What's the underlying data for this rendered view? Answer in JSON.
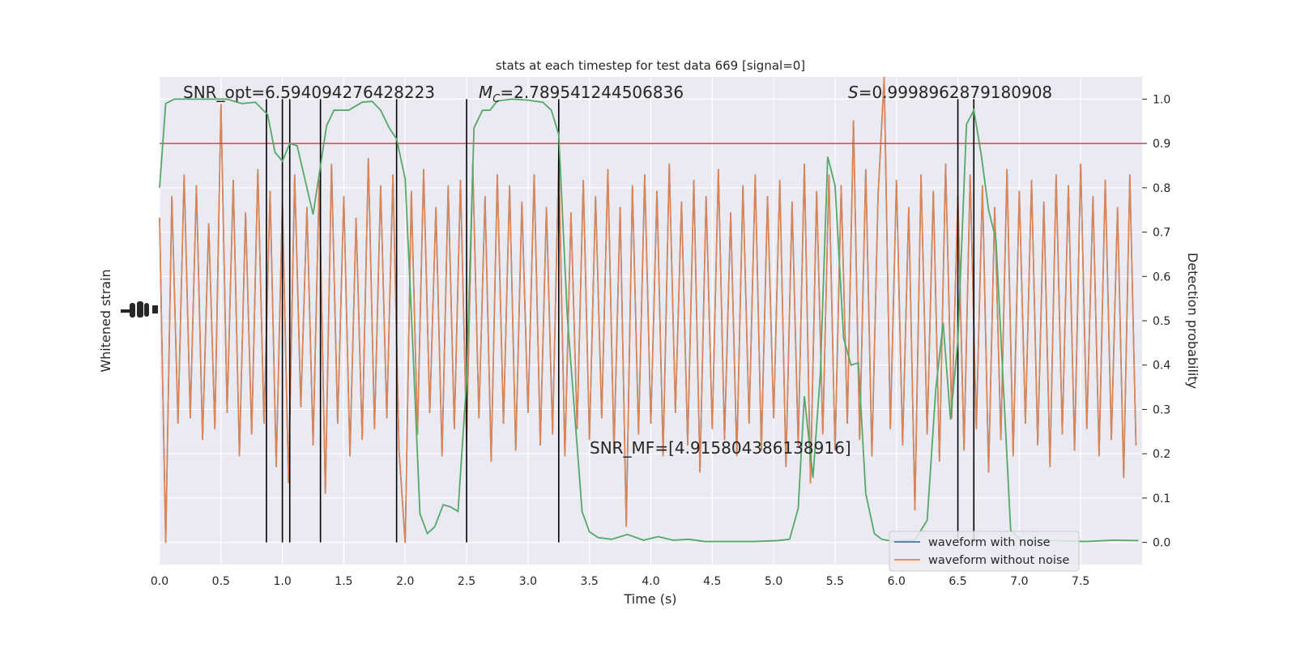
{
  "chart_data": {
    "type": "line",
    "title": "stats at each timestep for test data 669 [signal=0]",
    "xlabel": "Time (s)",
    "ylabel": "Whitened strain",
    "y2label": "Detection probability",
    "xlim": [
      0,
      8
    ],
    "ylim": [
      -4.6,
      4.4
    ],
    "y2lim": [
      -0.05,
      1.05
    ],
    "grid": true,
    "legend": "lower right",
    "xticks": [
      {
        "value": 0,
        "label": "0.0"
      },
      0.5,
      {
        "value": 1,
        "label": "1.0"
      },
      1.5,
      {
        "value": 2,
        "label": "2.0"
      },
      2.5,
      {
        "value": 3,
        "label": "3.0"
      },
      3.5,
      {
        "value": 4,
        "label": "4.0"
      },
      4.5,
      {
        "value": 5,
        "label": "5.0"
      },
      5.5,
      {
        "value": 6,
        "label": "6.0"
      },
      6.5,
      {
        "value": 7,
        "label": "7.0"
      },
      7.5
    ],
    "y2ticks": [
      {
        "value": 0,
        "label": "0.0"
      },
      0.1,
      0.2,
      0.3,
      0.4,
      0.5,
      0.6,
      0.7,
      0.8,
      0.9,
      {
        "value": 1,
        "label": "1.0"
      }
    ],
    "x": [
      0,
      0.05,
      0.1,
      0.15,
      0.2,
      0.25,
      0.3,
      0.35,
      0.4,
      0.45,
      0.5,
      0.55,
      0.6,
      0.65,
      0.7,
      0.75,
      0.8,
      0.85,
      0.9,
      0.95,
      1,
      1.05,
      1.1,
      1.15,
      1.2,
      1.25,
      1.3,
      1.35,
      1.4,
      1.45,
      1.5,
      1.55,
      1.6,
      1.65,
      1.7,
      1.75,
      1.8,
      1.85,
      1.9,
      1.95,
      2,
      2.05,
      2.1,
      2.15,
      2.2,
      2.25,
      2.3,
      2.35,
      2.4,
      2.45,
      2.5,
      2.55,
      2.6,
      2.65,
      2.7,
      2.75,
      2.8,
      2.85,
      2.9,
      2.95,
      3,
      3.05,
      3.1,
      3.15,
      3.2,
      3.25,
      3.3,
      3.35,
      3.4,
      3.45,
      3.5,
      3.55,
      3.6,
      3.65,
      3.7,
      3.75,
      3.8,
      3.85,
      3.9,
      3.95,
      4,
      4.05,
      4.1,
      4.15,
      4.2,
      4.25,
      4.3,
      4.35,
      4.4,
      4.45,
      4.5,
      4.55,
      4.6,
      4.65,
      4.7,
      4.75,
      4.8,
      4.85,
      4.9,
      4.95,
      5,
      5.05,
      5.1,
      5.15,
      5.2,
      5.25,
      5.3,
      5.35,
      5.4,
      5.45,
      5.5,
      5.55,
      5.6,
      5.65,
      5.7,
      5.75,
      5.8,
      5.85,
      5.9,
      5.95,
      6,
      6.05,
      6.1,
      6.15,
      6.2,
      6.25,
      6.3,
      6.35,
      6.4,
      6.45,
      6.5,
      6.55,
      6.6,
      6.65,
      6.7,
      6.75,
      6.8,
      6.85,
      6.9,
      6.95,
      7,
      7.05,
      7.1,
      7.15,
      7.2,
      7.25,
      7.3,
      7.35,
      7.4,
      7.45,
      7.5,
      7.55,
      7.6,
      7.65,
      7.7,
      7.75,
      7.8,
      7.85,
      7.9,
      7.95
    ],
    "series": [
      {
        "name": "waveform with noise",
        "color": "#4c72b0",
        "values": [
          1.8,
          -4.2,
          2.2,
          -2.0,
          2.6,
          -1.9,
          2.4,
          -2.3,
          1.7,
          -2.1,
          3.9,
          -1.8,
          2.5,
          -2.6,
          1.9,
          -2.2,
          2.7,
          -2.0,
          2.3,
          -2.8,
          2.1,
          -3.1,
          2.6,
          -1.7,
          2.0,
          -2.4,
          2.5,
          -3.3,
          2.8,
          -2.0,
          2.2,
          -2.6,
          1.8,
          -2.3,
          2.9,
          -2.1,
          2.4,
          -1.9,
          2.6,
          -2.5,
          -4.2,
          2.3,
          -2.2,
          2.7,
          -1.8,
          2.0,
          -2.6,
          2.4,
          -2.1,
          2.5,
          -2.3,
          2.8,
          -1.9,
          2.2,
          -2.7,
          2.6,
          -2.0,
          2.4,
          -2.5,
          2.1,
          -1.8,
          2.6,
          -2.4,
          2.0,
          -2.2,
          2.9,
          -2.6,
          1.9,
          -2.1,
          2.5,
          -2.3,
          2.2,
          -1.9,
          2.7,
          -2.5,
          2.0,
          -3.9,
          2.4,
          -2.2,
          2.6,
          -2.0,
          2.3,
          -2.6,
          2.8,
          -1.8,
          2.1,
          -2.4,
          2.5,
          -2.9,
          2.2,
          -2.1,
          2.7,
          -2.3,
          1.9,
          -2.6,
          2.4,
          -2.0,
          2.6,
          -2.5,
          2.2,
          -1.9,
          2.5,
          -2.8,
          2.1,
          -2.4,
          2.8,
          -3.1,
          2.3,
          -2.2,
          2.6,
          -2.5,
          2.4,
          -2.0,
          3.6,
          -2.3,
          2.7,
          -2.6,
          2.2,
          4.4,
          -2.1,
          2.5,
          -2.4,
          2.0,
          -3.6,
          2.6,
          -2.2,
          2.3,
          -2.7,
          2.8,
          -1.9,
          2.2,
          -2.5,
          2.6,
          -2.1,
          2.4,
          -2.9,
          2.0,
          -2.3,
          2.7,
          -2.6,
          2.3,
          -2.0,
          2.5,
          -2.4,
          2.1,
          -2.8,
          2.6,
          -2.2,
          2.4,
          -2.5,
          2.8,
          -2.1,
          2.2,
          -2.6,
          2.5,
          -2.3,
          2.0,
          -3.0,
          2.6,
          -2.4
        ]
      },
      {
        "name": "waveform without noise",
        "color": "#dd8452",
        "values": [
          1.8,
          -4.2,
          2.2,
          -2.0,
          2.6,
          -1.9,
          2.4,
          -2.3,
          1.7,
          -2.1,
          3.9,
          -1.8,
          2.5,
          -2.6,
          1.9,
          -2.2,
          2.7,
          -2.0,
          2.3,
          -2.8,
          2.1,
          -3.1,
          2.6,
          -1.7,
          2.0,
          -2.4,
          2.5,
          -3.3,
          2.8,
          -2.0,
          2.2,
          -2.6,
          1.8,
          -2.3,
          2.9,
          -2.1,
          2.4,
          -1.9,
          2.6,
          -2.5,
          -4.2,
          2.3,
          -2.2,
          2.7,
          -1.8,
          2.0,
          -2.6,
          2.4,
          -2.1,
          2.5,
          -2.3,
          2.8,
          -1.9,
          2.2,
          -2.7,
          2.6,
          -2.0,
          2.4,
          -2.5,
          2.1,
          -1.8,
          2.6,
          -2.4,
          2.0,
          -2.2,
          2.9,
          -2.6,
          1.9,
          -2.1,
          2.5,
          -2.3,
          2.2,
          -1.9,
          2.7,
          -2.5,
          2.0,
          -3.9,
          2.4,
          -2.2,
          2.6,
          -2.0,
          2.3,
          -2.6,
          2.8,
          -1.8,
          2.1,
          -2.4,
          2.5,
          -2.9,
          2.2,
          -2.1,
          2.7,
          -2.3,
          1.9,
          -2.6,
          2.4,
          -2.0,
          2.6,
          -2.5,
          2.2,
          -1.9,
          2.5,
          -2.8,
          2.1,
          -2.4,
          2.8,
          -3.1,
          2.3,
          -2.2,
          2.6,
          -2.5,
          2.4,
          -2.0,
          3.6,
          -2.3,
          2.7,
          -2.6,
          2.2,
          4.4,
          -2.1,
          2.5,
          -2.4,
          2.0,
          -3.6,
          2.6,
          -2.2,
          2.3,
          -2.7,
          2.8,
          -1.9,
          2.2,
          -2.5,
          2.6,
          -2.1,
          2.4,
          -2.9,
          2.0,
          -2.3,
          2.7,
          -2.6,
          2.3,
          -2.0,
          2.5,
          -2.4,
          2.1,
          -2.8,
          2.6,
          -2.2,
          2.4,
          -2.5,
          2.8,
          -2.1,
          2.2,
          -2.6,
          2.5,
          -2.3,
          2.0,
          -3.0,
          2.6,
          -2.4
        ]
      }
    ],
    "probability": {
      "axis": "y2",
      "color": "#55a868",
      "x": [
        0,
        0.05,
        0.12,
        0.55,
        0.67,
        0.78,
        0.88,
        0.94,
        1.0,
        1.06,
        1.12,
        1.25,
        1.36,
        1.42,
        1.54,
        1.65,
        1.73,
        1.8,
        1.87,
        1.93,
        2.0,
        2.06,
        2.12,
        2.18,
        2.24,
        2.31,
        2.37,
        2.43,
        2.5,
        2.56,
        2.63,
        2.69,
        2.75,
        2.87,
        2.99,
        3.12,
        3.19,
        3.25,
        3.32,
        3.44,
        3.5,
        3.57,
        3.68,
        3.81,
        3.94,
        4.06,
        4.18,
        4.31,
        4.44,
        4.64,
        4.84,
        5.03,
        5.13,
        5.2,
        5.25,
        5.32,
        5.38,
        5.44,
        5.5,
        5.57,
        5.63,
        5.69,
        5.75,
        5.82,
        5.88,
        5.96,
        6.15,
        6.25,
        6.32,
        6.38,
        6.44,
        6.5,
        6.57,
        6.63,
        6.69,
        6.75,
        6.81,
        6.93,
        7.01,
        7.28,
        7.54,
        7.77,
        7.97
      ],
      "values": [
        0.8,
        0.99,
        1.0,
        1.0,
        0.99,
        0.993,
        0.965,
        0.88,
        0.86,
        0.9,
        0.895,
        0.74,
        0.94,
        0.975,
        0.975,
        0.993,
        0.995,
        0.975,
        0.935,
        0.91,
        0.82,
        0.455,
        0.065,
        0.02,
        0.035,
        0.085,
        0.08,
        0.07,
        0.365,
        0.935,
        0.975,
        0.975,
        0.996,
        1.0,
        0.998,
        0.993,
        0.975,
        0.92,
        0.51,
        0.07,
        0.024,
        0.011,
        0.007,
        0.018,
        0.005,
        0.013,
        0.005,
        0.007,
        0.002,
        0.002,
        0.002,
        0.004,
        0.007,
        0.077,
        0.33,
        0.146,
        0.38,
        0.87,
        0.805,
        0.46,
        0.4,
        0.405,
        0.11,
        0.02,
        0.007,
        0.003,
        0.005,
        0.05,
        0.345,
        0.495,
        0.277,
        0.455,
        0.943,
        0.975,
        0.875,
        0.75,
        0.683,
        0.027,
        0.005,
        0.004,
        0.002,
        0.005,
        0.004
      ]
    },
    "threshold": {
      "axis": "y2",
      "value": 0.9,
      "color": "#c44e52"
    },
    "vlines": {
      "color": "#000000",
      "x": [
        0.87,
        1.0,
        1.06,
        1.31,
        1.93,
        2.5,
        3.25,
        6.5,
        6.63
      ]
    },
    "annotations": [
      {
        "text": "SNR_opt=6.594094276428223"
      },
      {
        "symbol": "M",
        "subscript": "C",
        "text": "=2.789541244506836"
      },
      {
        "symbol": "S",
        "text": "=0.9998962879180908"
      },
      {
        "text": "SNR_MF=[4.915804386138916]"
      }
    ]
  }
}
